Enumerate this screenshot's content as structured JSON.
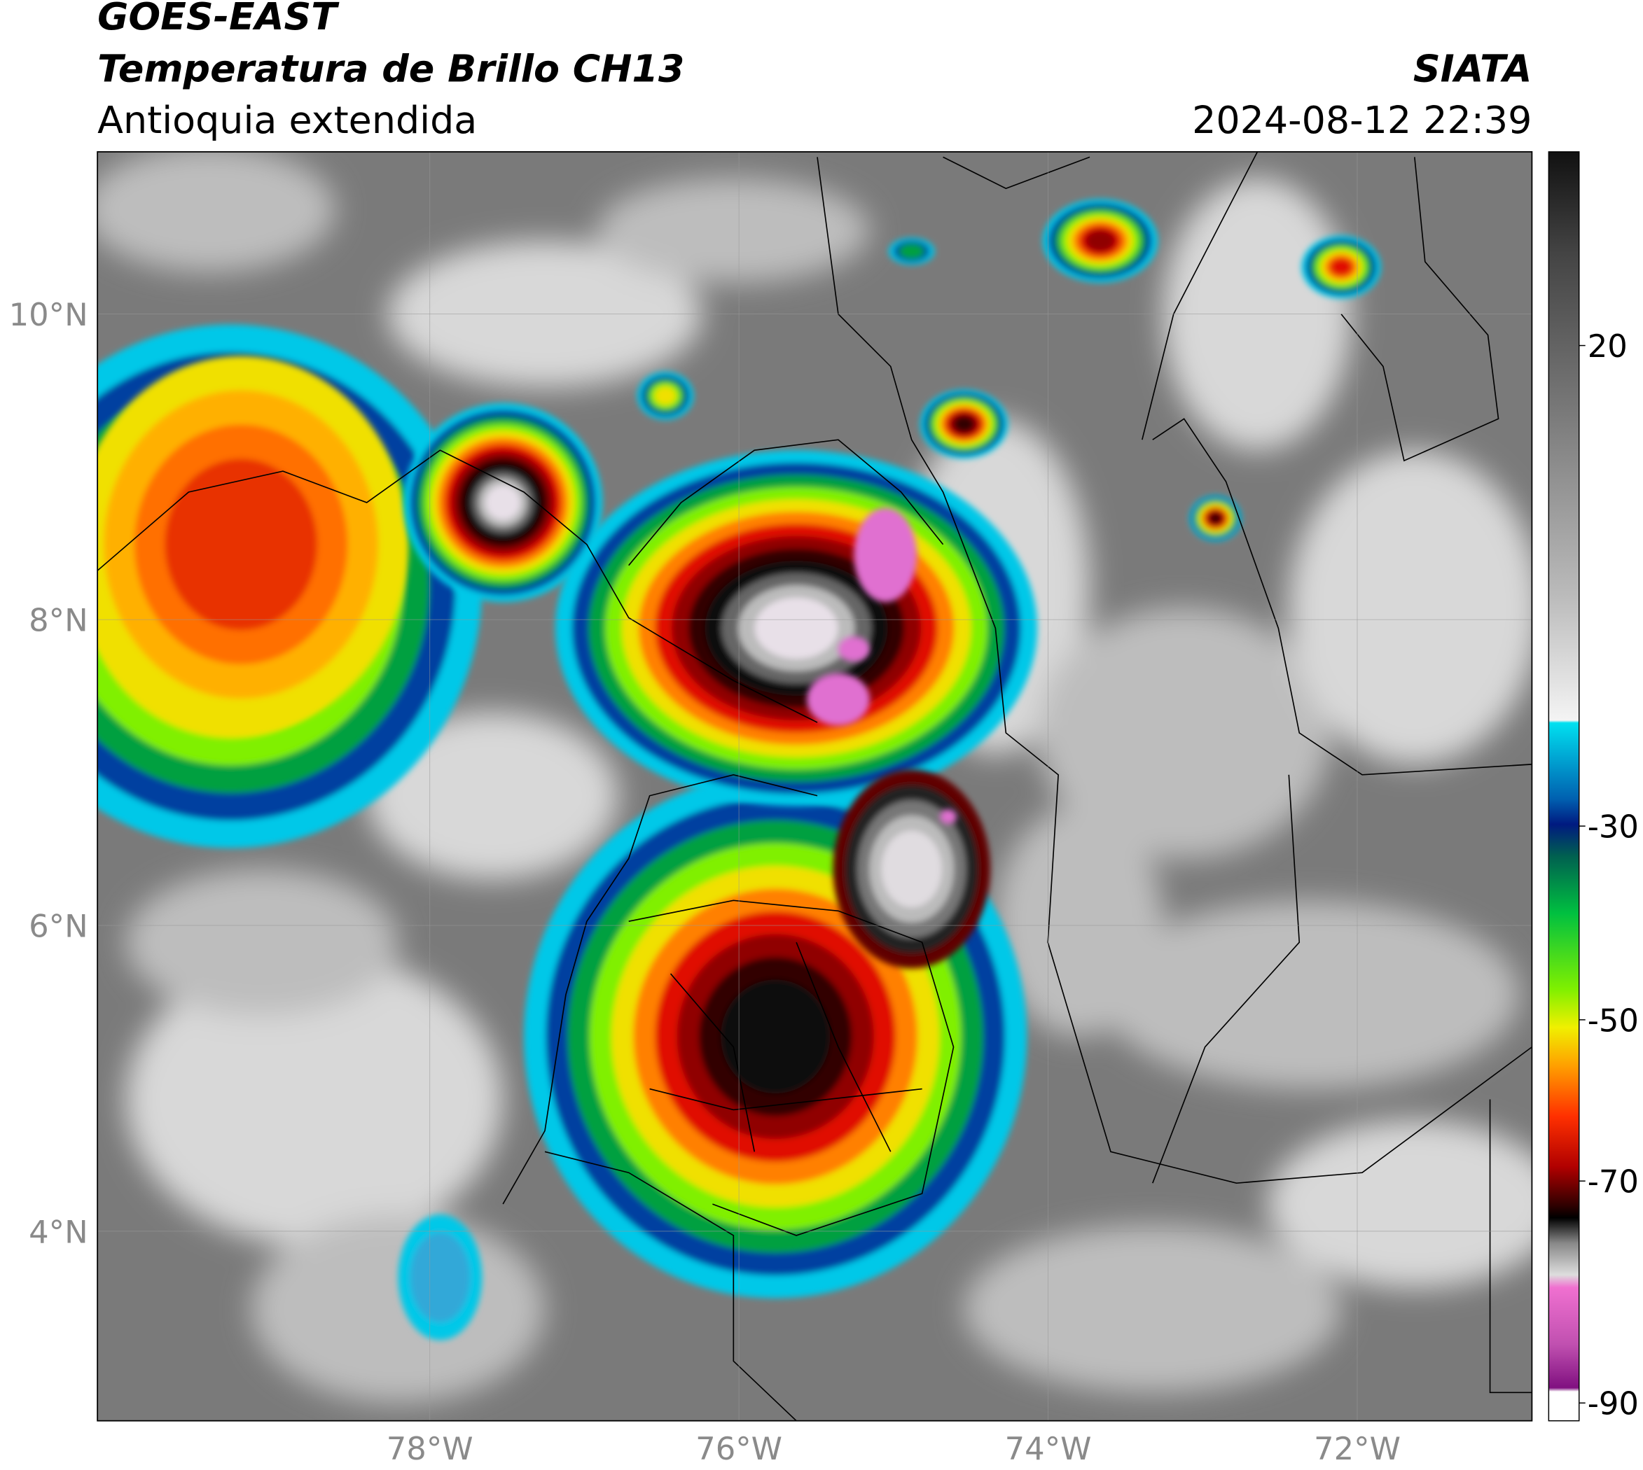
{
  "header": {
    "source": "GOES-EAST",
    "product": "Temperatura de Brillo CH13",
    "region": "Antioquia extendida",
    "agency": "SIATA",
    "datetime": "2024-08-12 22:39"
  },
  "map": {
    "xlim": [
      -80.15,
      -70.87
    ],
    "ylim": [
      2.76,
      11.06
    ],
    "xticks": [
      {
        "value": -78,
        "label": "78°W"
      },
      {
        "value": -76,
        "label": "76°W"
      },
      {
        "value": -74,
        "label": "74°W"
      },
      {
        "value": -72,
        "label": "72°W"
      }
    ],
    "yticks": [
      {
        "value": 10,
        "label": "10°N"
      },
      {
        "value": 8,
        "label": "8°N"
      },
      {
        "value": 6,
        "label": "6°N"
      },
      {
        "value": 4,
        "label": "4°N"
      }
    ],
    "grid": true
  },
  "colorbar": {
    "ticks": [
      20,
      -30,
      -50,
      -70,
      -90
    ]
  }
}
